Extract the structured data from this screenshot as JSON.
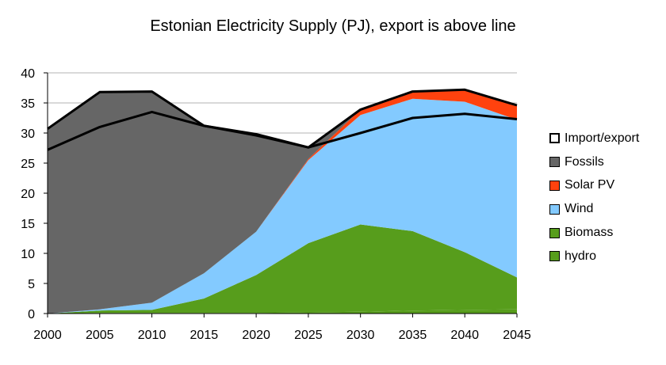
{
  "chart_data": {
    "type": "area",
    "title": "Estonian Electricity Supply (PJ), export is above line",
    "x": [
      2000,
      2005,
      2010,
      2015,
      2020,
      2025,
      2030,
      2035,
      2040,
      2045
    ],
    "xlim": [
      2000,
      2045
    ],
    "ylim": [
      0,
      40
    ],
    "yticks": [
      0,
      5,
      10,
      15,
      20,
      25,
      30,
      35,
      40
    ],
    "grid": true,
    "legend_position": "right",
    "series": [
      {
        "name": "hydro",
        "color": "#579D1C",
        "stacked": true,
        "values": [
          0.0,
          0.1,
          0.1,
          0.1,
          0.1,
          0.2,
          0.3,
          0.5,
          0.6,
          0.7
        ]
      },
      {
        "name": "Biomass",
        "color": "#579D1C",
        "stacked": true,
        "values": [
          0.0,
          0.4,
          0.5,
          2.4,
          6.3,
          11.5,
          14.5,
          13.2,
          9.6,
          5.3
        ]
      },
      {
        "name": "Wind",
        "color": "#83CAFF",
        "stacked": true,
        "values": [
          0.0,
          0.2,
          1.2,
          4.2,
          7.2,
          13.8,
          18.2,
          22.0,
          25.0,
          26.2
        ]
      },
      {
        "name": "Solar PV",
        "color": "#FF420E",
        "stacked": true,
        "values": [
          0.0,
          0.0,
          0.0,
          0.0,
          0.0,
          0.2,
          0.9,
          1.2,
          2.0,
          2.4
        ]
      },
      {
        "name": "Fossils",
        "color": "#666666",
        "stacked": true,
        "values": [
          30.7,
          36.1,
          35.1,
          24.5,
          16.0,
          1.9,
          0.0,
          0.0,
          0.0,
          0.0
        ]
      },
      {
        "name": "Import/export",
        "color": "#000000",
        "type": "line",
        "values": [
          27.2,
          31.0,
          33.5,
          31.2,
          29.8,
          27.6,
          30.0,
          32.5,
          33.2,
          32.3
        ]
      }
    ],
    "legend_order": [
      "Import/export",
      "Fossils",
      "Solar PV",
      "Wind",
      "Biomass",
      "hydro"
    ]
  }
}
